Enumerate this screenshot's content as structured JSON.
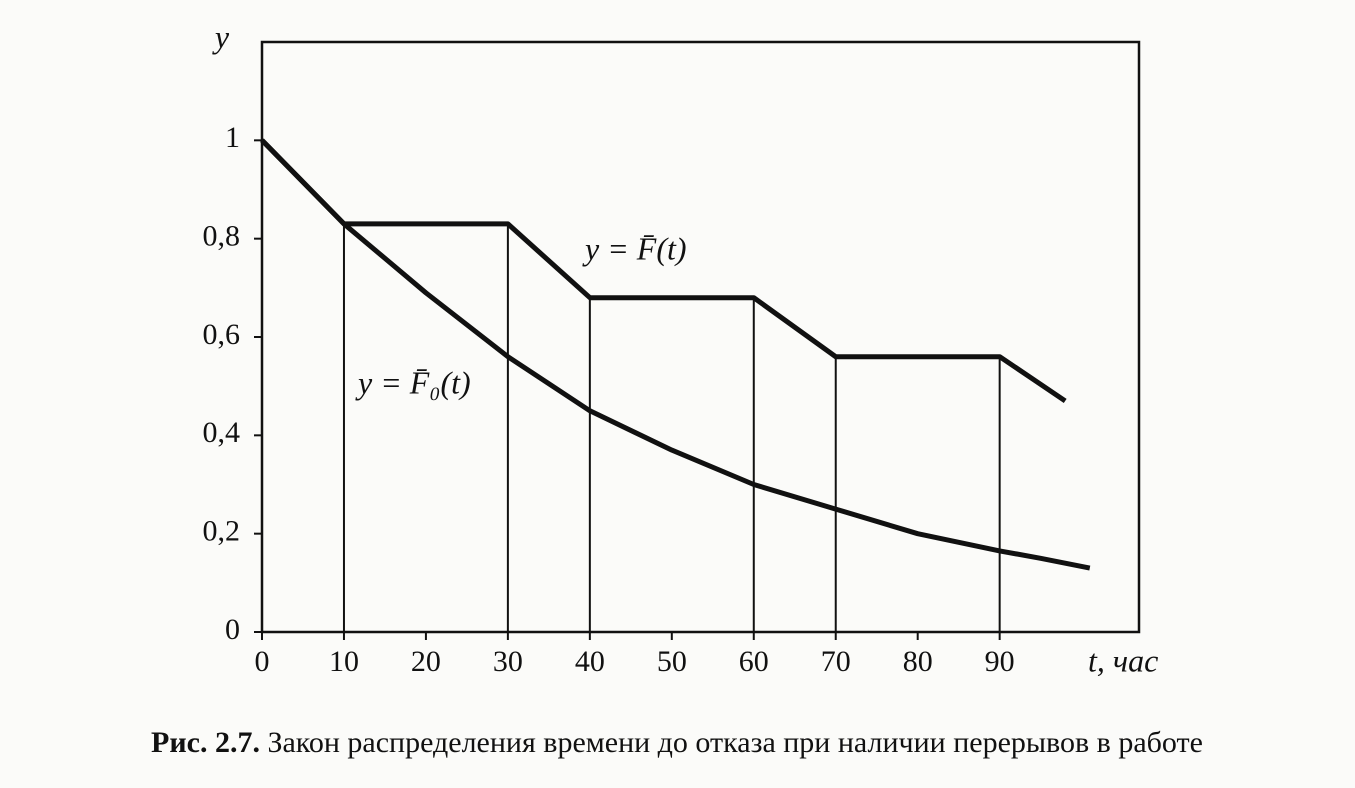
{
  "chart_data": {
    "type": "line",
    "y_label": "y",
    "x_label": "t, час",
    "caption_label": "Рис. 2.7.",
    "caption_text": "Закон распределения времени до отказа при наличии перерывов в работе",
    "xlim": [
      0,
      107
    ],
    "ylim": [
      0,
      1.2
    ],
    "xticks": [
      0,
      10,
      20,
      30,
      40,
      50,
      60,
      70,
      80,
      90
    ],
    "yticks": [
      0,
      {
        "value": 0.2,
        "label": "0,2"
      },
      {
        "value": 0.4,
        "label": "0,4"
      },
      {
        "value": 0.6,
        "label": "0,6"
      },
      {
        "value": 0.8,
        "label": "0,8"
      },
      1
    ],
    "series": [
      {
        "name": "y = F̄(t)",
        "color": "#111111",
        "x": [
          0,
          10,
          30,
          40,
          60,
          70,
          90,
          98
        ],
        "values": [
          1,
          0.83,
          0.83,
          0.68,
          0.68,
          0.56,
          0.56,
          0.47
        ]
      },
      {
        "name": "y = F̄₀(t)",
        "color": "#111111",
        "x": [
          0,
          10,
          20,
          30,
          40,
          50,
          60,
          70,
          80,
          90,
          95,
          101
        ],
        "values": [
          1,
          0.83,
          0.69,
          0.56,
          0.45,
          0.37,
          0.3,
          0.25,
          0.2,
          0.165,
          0.15,
          0.13
        ]
      }
    ]
  }
}
